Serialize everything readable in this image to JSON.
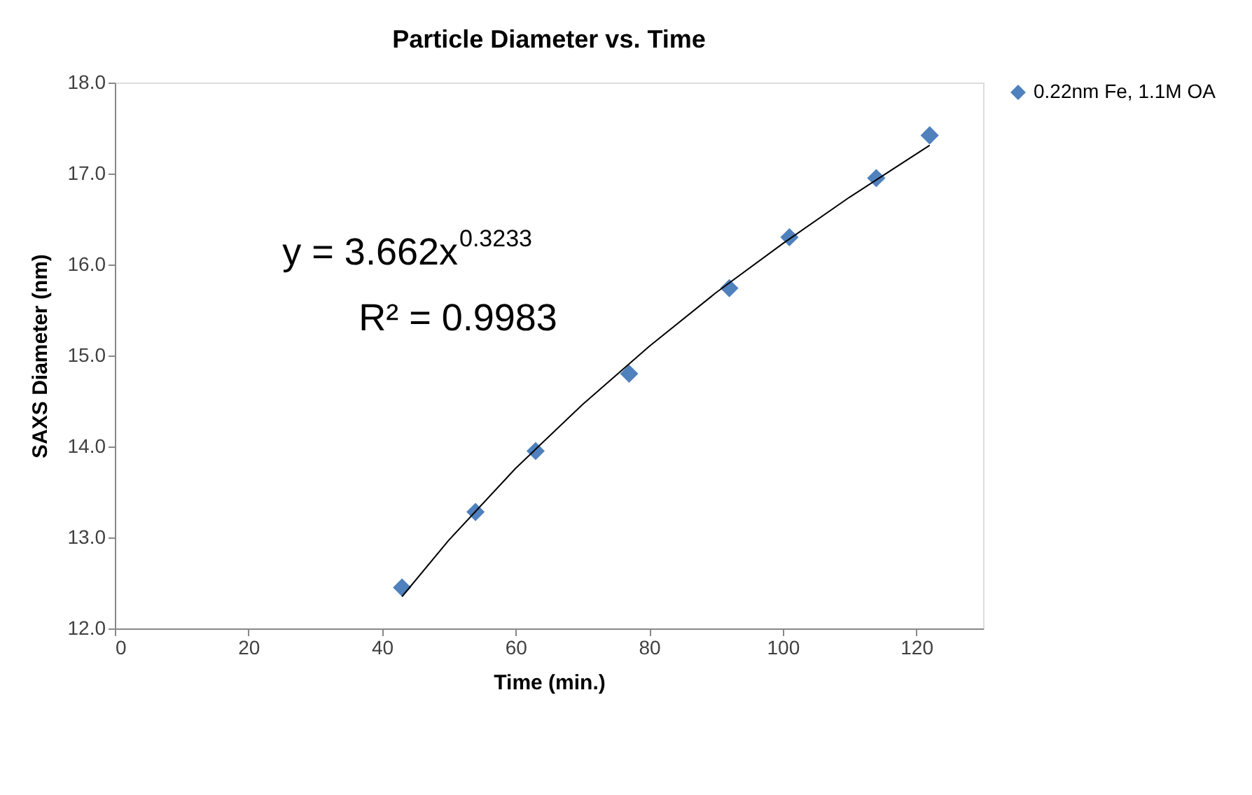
{
  "chart_data": {
    "type": "scatter",
    "title": "Particle Diameter vs. Time",
    "xlabel": "Time (min.)",
    "ylabel": "SAXS Diameter (nm)",
    "x": [
      43,
      54,
      63,
      77,
      92,
      101,
      114,
      122
    ],
    "series": [
      {
        "name": "0.22nm Fe, 1.1M OA",
        "color": "#4f81bd",
        "marker": "diamond",
        "values": [
          12.45,
          13.28,
          13.95,
          14.8,
          15.74,
          16.3,
          16.95,
          17.42
        ]
      },
      {
        "color": "#000000",
        "type": "line",
        "marker": "none",
        "line_style": "solid",
        "x": [
          43,
          50,
          60,
          70,
          80,
          90,
          100,
          110,
          122
        ],
        "values": [
          12.35,
          12.97,
          13.76,
          14.46,
          15.1,
          15.69,
          16.23,
          16.74,
          17.31
        ]
      }
    ],
    "annotations": [
      "y = 3.662x$^{0.3233}$",
      "R² = 0.9983"
    ],
    "xlim": [
      0,
      130
    ],
    "xticks": [
      0,
      20,
      40,
      60,
      80,
      100,
      120
    ],
    "ylim": [
      12,
      18
    ],
    "yticks": [
      {
        "value": 12,
        "label": "12.0"
      },
      {
        "value": 13,
        "label": "13.0"
      },
      {
        "value": 14,
        "label": "14.0"
      },
      {
        "value": 15,
        "label": "15.0"
      },
      {
        "value": 16,
        "label": "16.0"
      },
      {
        "value": 17,
        "label": "17.0"
      },
      {
        "value": 18,
        "label": "18.0"
      }
    ],
    "grid": false,
    "legend": "right"
  }
}
